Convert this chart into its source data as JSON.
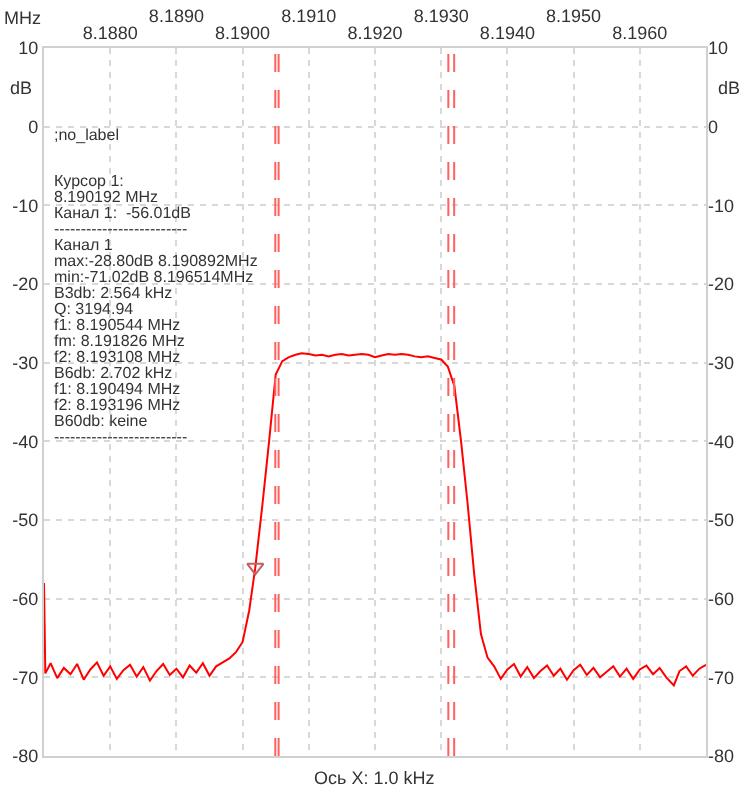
{
  "chart_data": {
    "type": "line",
    "xlabel": "MHz",
    "ylabel": "dB",
    "y2label": "dB",
    "series": [
      {
        "color": "#ff0000",
        "x": [
          8.187,
          8.18702,
          8.1871,
          8.1872,
          8.1873,
          8.1874,
          8.1875,
          8.1876,
          8.1877,
          8.1878,
          8.1879,
          8.188,
          8.1881,
          8.1882,
          8.1883,
          8.1884,
          8.1885,
          8.1886,
          8.1887,
          8.1888,
          8.1889,
          8.189,
          8.1891,
          8.1892,
          8.1893,
          8.1894,
          8.1895,
          8.1896,
          8.1897,
          8.1898,
          8.1899,
          8.19,
          8.1901,
          8.190192,
          8.1903,
          8.1904,
          8.1905,
          8.1906,
          8.1907,
          8.1908,
          8.190892,
          8.191,
          8.1911,
          8.1912,
          8.1913,
          8.1914,
          8.1915,
          8.1916,
          8.1917,
          8.1918,
          8.1919,
          8.192,
          8.1921,
          8.1922,
          8.1923,
          8.1924,
          8.1925,
          8.1926,
          8.1927,
          8.1928,
          8.1929,
          8.193,
          8.1931,
          8.1932,
          8.1933,
          8.1934,
          8.1935,
          8.1936,
          8.1937,
          8.1938,
          8.1939,
          8.194,
          8.1941,
          8.1942,
          8.1943,
          8.1944,
          8.1945,
          8.1946,
          8.1947,
          8.1948,
          8.1949,
          8.195,
          8.1951,
          8.1952,
          8.1953,
          8.1954,
          8.1955,
          8.1956,
          8.1957,
          8.1958,
          8.1959,
          8.196,
          8.1961,
          8.1962,
          8.1963,
          8.1964,
          8.196514,
          8.1966,
          8.1967,
          8.1968,
          8.1969,
          8.197
        ],
        "values": [
          -58,
          -69.5,
          -68.2,
          -70.1,
          -68.8,
          -69.6,
          -68.3,
          -70.3,
          -69,
          -68.1,
          -69.8,
          -68.6,
          -70.2,
          -69.1,
          -68.4,
          -69.9,
          -68.7,
          -70.4,
          -69.2,
          -68.3,
          -69.7,
          -68.9,
          -70,
          -68.5,
          -69.4,
          -68.2,
          -69.8,
          -68.6,
          -68.1,
          -67.6,
          -66.8,
          -65.5,
          -61.5,
          -56.01,
          -48,
          -40,
          -31.5,
          -29.8,
          -29.3,
          -29,
          -28.8,
          -28.9,
          -29.1,
          -29,
          -29.2,
          -29,
          -28.9,
          -29.1,
          -29,
          -28.9,
          -29,
          -29.3,
          -29.1,
          -28.9,
          -29,
          -28.9,
          -29,
          -29.2,
          -29.3,
          -29.2,
          -29.4,
          -29.6,
          -30.5,
          -33,
          -40,
          -48,
          -57,
          -64.5,
          -67.5,
          -68.6,
          -70.2,
          -69,
          -68.3,
          -69.9,
          -68.7,
          -70.1,
          -69.2,
          -68.5,
          -69.8,
          -68.9,
          -70.3,
          -69.1,
          -68.4,
          -69.7,
          -68.8,
          -70,
          -69.3,
          -68.6,
          -69.9,
          -68.9,
          -70.2,
          -69,
          -68.5,
          -69.6,
          -68.8,
          -70,
          -71.02,
          -69.2,
          -68.6,
          -69.8,
          -68.9,
          -68.4
        ]
      },
      {
        "type": "scatter",
        "marker": "triangle",
        "color": "#c06060",
        "x": [
          8.190192
        ],
        "values": [
          -56.01
        ]
      }
    ],
    "xlim": [
      8.187,
      8.197
    ],
    "xticks": [
      {
        "value": 8.188,
        "label": "8.1880"
      },
      {
        "value": 8.189,
        "label": null
      },
      {
        "value": 8.19,
        "label": "8.1900"
      },
      {
        "value": 8.191,
        "label": null
      },
      {
        "value": 8.192,
        "label": "8.1920"
      },
      {
        "value": 8.193,
        "label": null
      },
      {
        "value": 8.194,
        "label": "8.1940"
      },
      {
        "value": 8.195,
        "label": null
      },
      {
        "value": 8.196,
        "label": "8.1960"
      }
    ],
    "x2lim": [
      8.187,
      8.197
    ],
    "x2ticks": [
      {
        "value": 8.189,
        "label": "8.1890"
      },
      {
        "value": 8.191,
        "label": "8.1910"
      },
      {
        "value": 8.193,
        "label": "8.1930"
      },
      {
        "value": 8.195,
        "label": "8.1950"
      }
    ],
    "ylim": [
      -80,
      10
    ],
    "yticks": [
      10,
      0,
      -10,
      -20,
      -30,
      -40,
      -50,
      -60,
      -70,
      -80
    ],
    "y2lim": [
      -80,
      10
    ],
    "y2ticks": [
      10,
      0,
      -10,
      -20,
      -30,
      -40,
      -50,
      -60,
      -70,
      -80
    ],
    "ref_lines": [
      {
        "axis": "x",
        "value": 8.190544,
        "color": "#ff6060",
        "line_style": "dashed"
      },
      {
        "axis": "x",
        "value": 8.190494,
        "color": "#ff6060",
        "line_style": "dashed"
      },
      {
        "axis": "x",
        "value": 8.193108,
        "color": "#ff6060",
        "line_style": "dashed"
      },
      {
        "axis": "x",
        "value": 8.193196,
        "color": "#ff6060",
        "line_style": "dashed"
      }
    ],
    "grid": true,
    "marker": "none",
    "line_style": "solid",
    "annotations": [
      ";no_label",
      "Курсор 1:",
      "8.190192 MHz",
      "Канал 1:  -56.01dB",
      "-------------------------",
      "Канал 1",
      "max:-28.80dB 8.190892MHz",
      "min:-71.02dB 8.196514MHz",
      "B3db: 2.564 kHz",
      "Q: 3194.94",
      "f1: 8.190544 MHz",
      "fm: 8.191826 MHz",
      "f2: 8.193108 MHz",
      "B6db: 2.702 kHz",
      "f1: 8.190494 MHz",
      "f2: 8.193196 MHz",
      "B60db: keine",
      "-------------------------",
      "Ось X: 1.0 kHz"
    ]
  }
}
